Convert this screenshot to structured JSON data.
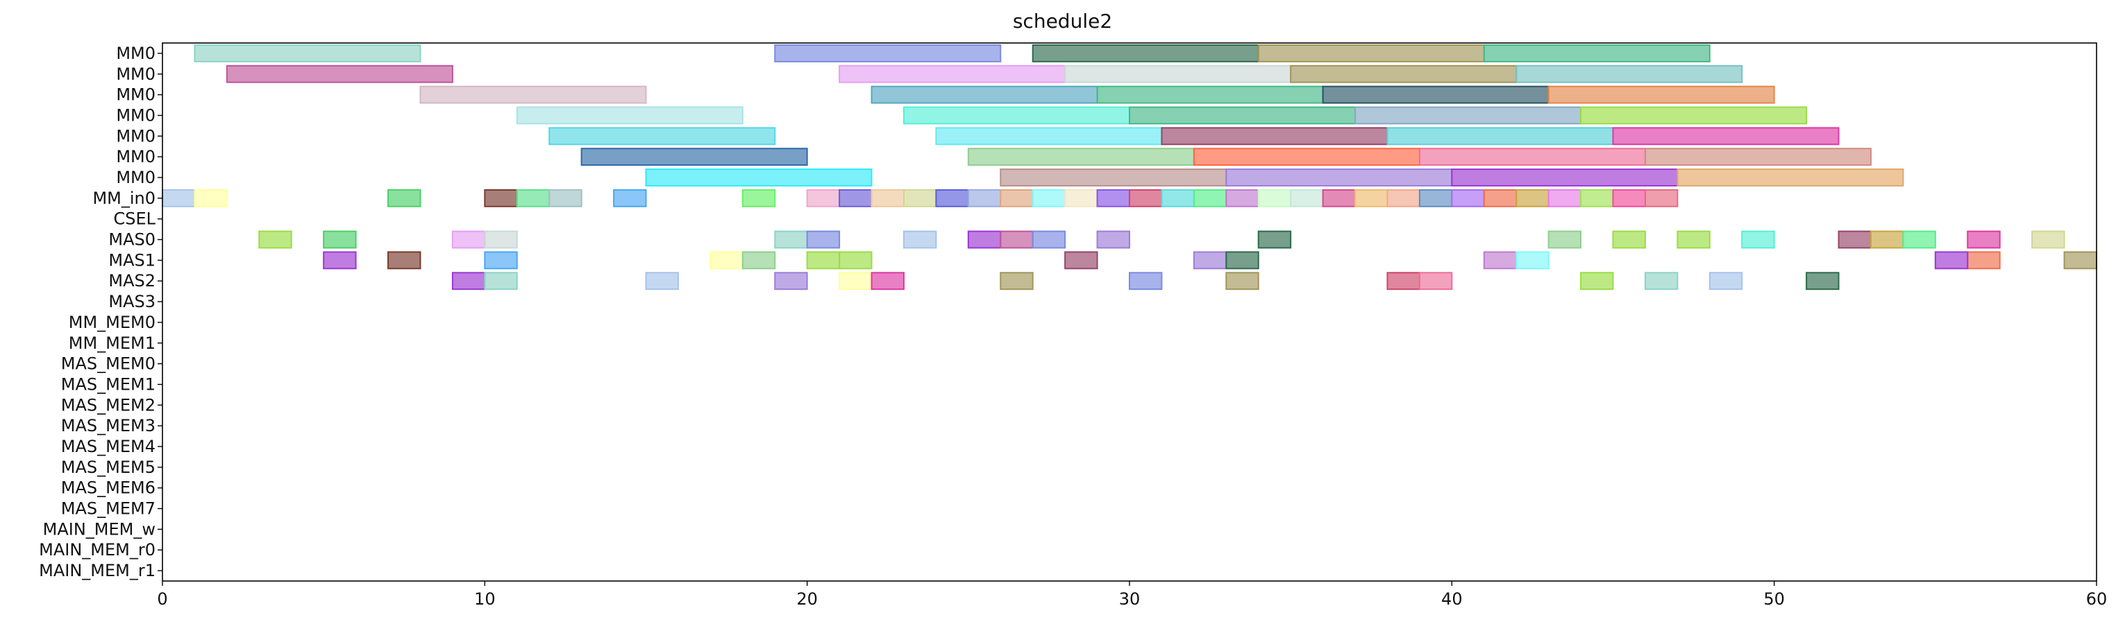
{
  "chart_data": {
    "type": "gantt",
    "title": "schedule2",
    "xlim": [
      0,
      60
    ],
    "x_ticks": [
      0,
      10,
      20,
      30,
      40,
      50,
      60
    ],
    "grid": false,
    "legend": "none",
    "rows": [
      "MM0",
      "MM0",
      "MM0",
      "MM0",
      "MM0",
      "MM0",
      "MM0",
      "MM_in0",
      "CSEL",
      "MAS0",
      "MAS1",
      "MAS2",
      "MAS3",
      "MM_MEM0",
      "MM_MEM1",
      "MAS_MEM0",
      "MAS_MEM1",
      "MAS_MEM2",
      "MAS_MEM3",
      "MAS_MEM4",
      "MAS_MEM5",
      "MAS_MEM6",
      "MAS_MEM7",
      "MAIN_MEM_w",
      "MAIN_MEM_r0",
      "MAIN_MEM_r1"
    ],
    "palette": [
      "#8fd3c6",
      "#7b8be0",
      "#2e6b4e",
      "#a1965a",
      "#44b989",
      "#c0569a",
      "#e5a0f3",
      "#cbd8d5",
      "#79c1c1",
      "#d5b7c3",
      "#55a8c2",
      "#2a5565",
      "#e3874b",
      "#a9e3e7",
      "#55f0d5",
      "#86a8c5",
      "#99dd44",
      "#55d7e3",
      "#64e9f2",
      "#96456a",
      "#55d1d8",
      "#dd3aa5",
      "#2f6ba8",
      "#8fcf8f",
      "#ff6644",
      "#ee6f99",
      "#cf8d80",
      "#33e9f9",
      "#b9918e",
      "#9d7dd8",
      "#9c38d3",
      "#e3a766",
      "#a6c3ea",
      "#ffffa0",
      "#4cd068",
      "#7a3a2e",
      "#5be08d",
      "#9ec1c4",
      "#4ba8f3",
      "#66f066",
      "#f0a6cc",
      "#6b60d8",
      "#f0c89a",
      "#d2d794",
      "#5a60d8",
      "#98abe0",
      "#e0a67e",
      "#7ff8f8",
      "#f4e6c4",
      "#8855e8",
      "#d0456b",
      "#57dbdb",
      "#55ee88",
      "#c07bcf",
      "#c8fbc5",
      "#c3e8d8",
      "#d64c8f",
      "#f0bb6e",
      "#f3a88c",
      "#5f8fc3",
      "#a86bf6",
      "#f06e4c",
      "#c9a540",
      "#e77de8",
      "#a0e454",
      "#f34c9a",
      "#e66a82"
    ],
    "bars": [
      [
        0,
        1,
        8,
        0
      ],
      [
        0,
        19,
        26,
        1
      ],
      [
        0,
        27,
        34,
        2
      ],
      [
        0,
        34,
        41,
        3
      ],
      [
        0,
        41,
        48,
        4
      ],
      [
        1,
        2,
        9,
        5
      ],
      [
        1,
        21,
        28,
        6
      ],
      [
        1,
        28,
        35,
        7
      ],
      [
        1,
        35,
        42,
        3
      ],
      [
        1,
        42,
        49,
        8
      ],
      [
        2,
        8,
        15,
        9
      ],
      [
        2,
        22,
        29,
        10
      ],
      [
        2,
        29,
        36,
        4
      ],
      [
        2,
        36,
        43,
        11
      ],
      [
        2,
        43,
        50,
        12
      ],
      [
        3,
        11,
        18,
        13
      ],
      [
        3,
        23,
        30,
        14
      ],
      [
        3,
        30,
        37,
        4
      ],
      [
        3,
        37,
        44,
        15
      ],
      [
        3,
        44,
        51,
        16
      ],
      [
        4,
        12,
        19,
        17
      ],
      [
        4,
        24,
        31,
        18
      ],
      [
        4,
        31,
        38,
        19
      ],
      [
        4,
        38,
        45,
        20
      ],
      [
        4,
        45,
        52,
        21
      ],
      [
        5,
        13,
        20,
        22
      ],
      [
        5,
        25,
        32,
        23
      ],
      [
        5,
        32,
        39,
        24
      ],
      [
        5,
        39,
        46,
        25
      ],
      [
        5,
        46,
        53,
        26
      ],
      [
        6,
        15,
        22,
        27
      ],
      [
        6,
        26,
        33,
        28
      ],
      [
        6,
        33,
        40,
        29
      ],
      [
        6,
        40,
        47,
        30
      ],
      [
        6,
        47,
        54,
        31
      ],
      [
        7,
        0,
        1,
        32
      ],
      [
        7,
        1,
        2,
        33
      ],
      [
        7,
        7,
        8,
        34
      ],
      [
        7,
        10,
        11,
        35
      ],
      [
        7,
        11,
        12,
        36
      ],
      [
        7,
        12,
        13,
        37
      ],
      [
        7,
        14,
        15,
        38
      ],
      [
        7,
        18,
        19,
        39
      ],
      [
        7,
        20,
        21,
        40
      ],
      [
        7,
        21,
        22,
        41
      ],
      [
        7,
        22,
        23,
        42
      ],
      [
        7,
        23,
        24,
        43
      ],
      [
        7,
        24,
        25,
        44
      ],
      [
        7,
        25,
        26,
        45
      ],
      [
        7,
        26,
        27,
        46
      ],
      [
        7,
        27,
        28,
        47
      ],
      [
        7,
        28,
        29,
        48
      ],
      [
        7,
        29,
        30,
        49
      ],
      [
        7,
        30,
        31,
        50
      ],
      [
        7,
        31,
        32,
        51
      ],
      [
        7,
        32,
        33,
        52
      ],
      [
        7,
        33,
        34,
        53
      ],
      [
        7,
        34,
        35,
        54
      ],
      [
        7,
        35,
        36,
        55
      ],
      [
        7,
        36,
        37,
        56
      ],
      [
        7,
        37,
        38,
        57
      ],
      [
        7,
        38,
        39,
        58
      ],
      [
        7,
        39,
        40,
        59
      ],
      [
        7,
        40,
        41,
        60
      ],
      [
        7,
        41,
        42,
        61
      ],
      [
        7,
        42,
        43,
        62
      ],
      [
        7,
        43,
        44,
        63
      ],
      [
        7,
        44,
        45,
        64
      ],
      [
        7,
        45,
        46,
        65
      ],
      [
        7,
        46,
        47,
        66
      ],
      [
        9,
        3,
        4,
        16
      ],
      [
        9,
        5,
        6,
        34
      ],
      [
        9,
        9,
        10,
        6
      ],
      [
        9,
        10,
        11,
        7
      ],
      [
        9,
        19,
        20,
        0
      ],
      [
        9,
        20,
        21,
        1
      ],
      [
        9,
        23,
        24,
        32
      ],
      [
        9,
        25,
        26,
        30
      ],
      [
        9,
        26,
        27,
        5
      ],
      [
        9,
        27,
        28,
        1
      ],
      [
        9,
        29,
        30,
        29
      ],
      [
        9,
        34,
        35,
        2
      ],
      [
        9,
        43,
        44,
        23
      ],
      [
        9,
        45,
        46,
        16
      ],
      [
        9,
        47,
        48,
        16
      ],
      [
        9,
        49,
        50,
        14
      ],
      [
        9,
        52,
        53,
        19
      ],
      [
        9,
        53,
        54,
        62
      ],
      [
        9,
        54,
        55,
        52
      ],
      [
        9,
        56,
        57,
        21
      ],
      [
        9,
        58,
        59,
        43
      ],
      [
        10,
        5,
        6,
        30
      ],
      [
        10,
        7,
        8,
        35
      ],
      [
        10,
        10,
        11,
        38
      ],
      [
        10,
        17,
        18,
        33
      ],
      [
        10,
        18,
        19,
        23
      ],
      [
        10,
        20,
        21,
        16
      ],
      [
        10,
        21,
        22,
        16
      ],
      [
        10,
        28,
        29,
        19
      ],
      [
        10,
        32,
        33,
        29
      ],
      [
        10,
        33,
        34,
        2
      ],
      [
        10,
        41,
        42,
        53
      ],
      [
        10,
        42,
        43,
        47
      ],
      [
        10,
        59,
        60,
        3
      ],
      [
        10,
        56,
        57,
        61
      ],
      [
        10,
        55,
        56,
        30
      ],
      [
        11,
        9,
        10,
        30
      ],
      [
        11,
        10,
        11,
        0
      ],
      [
        11,
        15,
        16,
        32
      ],
      [
        11,
        19,
        20,
        29
      ],
      [
        11,
        21,
        22,
        33
      ],
      [
        11,
        22,
        23,
        21
      ],
      [
        11,
        26,
        27,
        3
      ],
      [
        11,
        30,
        31,
        1
      ],
      [
        11,
        33,
        34,
        3
      ],
      [
        11,
        38,
        39,
        50
      ],
      [
        11,
        39,
        40,
        25
      ],
      [
        11,
        44,
        45,
        16
      ],
      [
        11,
        46,
        47,
        0
      ],
      [
        11,
        48,
        49,
        32
      ],
      [
        11,
        51,
        52,
        2
      ]
    ]
  }
}
